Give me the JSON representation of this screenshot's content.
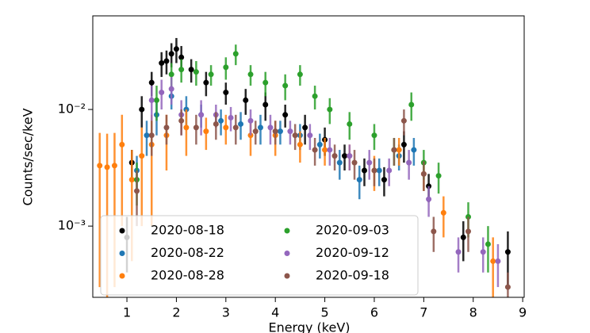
{
  "chart_data": {
    "type": "scatter",
    "x_label": "Energy (keV)",
    "y_label": "Counts/sec/keV",
    "yscale": "log",
    "xlim": [
      0.31,
      9.03
    ],
    "ylim": [
      0.000245,
      0.0635
    ],
    "xticks": [
      1,
      2,
      3,
      4,
      5,
      6,
      7,
      8,
      9
    ],
    "yticks": [
      {
        "value": 0.001,
        "label": "10⁻³"
      },
      {
        "value": 0.01,
        "label": "10⁻²"
      }
    ],
    "legend": "lower left",
    "series": [
      {
        "name": "2020-08-18",
        "color": "#000000",
        "x": [
          1.0,
          1.1,
          1.3,
          1.5,
          1.7,
          1.8,
          1.9,
          2.0,
          2.1,
          2.3,
          2.6,
          3.0,
          3.4,
          3.8,
          4.2,
          4.6,
          5.0,
          5.4,
          5.8,
          6.2,
          6.6,
          7.1,
          7.8,
          8.7
        ],
        "values": [
          0.0008,
          0.0035,
          0.01,
          0.017,
          0.025,
          0.026,
          0.03,
          0.033,
          0.028,
          0.022,
          0.017,
          0.014,
          0.012,
          0.011,
          0.009,
          0.007,
          0.0055,
          0.004,
          0.003,
          0.0025,
          0.005,
          0.0022,
          0.0008,
          0.0006
        ],
        "errors": [
          0.0004,
          0.001,
          0.003,
          0.004,
          0.006,
          0.006,
          0.007,
          0.008,
          0.007,
          0.005,
          0.004,
          0.003,
          0.003,
          0.003,
          0.002,
          0.002,
          0.0015,
          0.001,
          0.0008,
          0.0007,
          0.0015,
          0.0006,
          0.0003,
          0.0003
        ]
      },
      {
        "name": "2020-08-22",
        "color": "#1f77b4",
        "x": [
          1.2,
          1.4,
          1.6,
          1.9,
          2.2,
          2.5,
          2.9,
          3.3,
          3.7,
          4.1,
          4.5,
          4.9,
          5.3,
          5.7,
          6.1,
          6.5,
          6.8
        ],
        "values": [
          0.003,
          0.006,
          0.009,
          0.013,
          0.01,
          0.009,
          0.008,
          0.0075,
          0.007,
          0.0065,
          0.006,
          0.005,
          0.0035,
          0.0025,
          0.003,
          0.004,
          0.0045
        ],
        "errors": [
          0.001,
          0.002,
          0.003,
          0.003,
          0.003,
          0.002,
          0.002,
          0.002,
          0.002,
          0.0015,
          0.0015,
          0.0012,
          0.001,
          0.0008,
          0.0008,
          0.001,
          0.0012
        ]
      },
      {
        "name": "2020-08-28",
        "color": "#ff7f0e",
        "x": [
          0.45,
          0.6,
          0.75,
          0.9,
          1.1,
          1.3,
          1.5,
          1.8,
          2.2,
          2.6,
          3.0,
          3.5,
          4.0,
          4.5,
          5.0,
          5.5,
          6.0,
          6.5,
          7.0,
          7.4,
          8.4
        ],
        "values": [
          0.0033,
          0.0032,
          0.0033,
          0.005,
          0.0025,
          0.004,
          0.005,
          0.006,
          0.007,
          0.0065,
          0.007,
          0.006,
          0.006,
          0.005,
          0.0045,
          0.004,
          0.003,
          0.0045,
          0.0028,
          0.0013,
          0.0005
        ],
        "errors": [
          0.003,
          0.003,
          0.003,
          0.004,
          0.002,
          0.003,
          0.004,
          0.003,
          0.003,
          0.002,
          0.002,
          0.002,
          0.002,
          0.0015,
          0.0012,
          0.001,
          0.001,
          0.0012,
          0.0008,
          0.0005,
          0.0003
        ]
      },
      {
        "name": "2020-09-03",
        "color": "#2ca02c",
        "x": [
          1.2,
          1.6,
          1.9,
          2.1,
          2.4,
          2.7,
          3.0,
          3.2,
          3.5,
          3.8,
          4.2,
          4.5,
          4.8,
          5.1,
          5.5,
          6.0,
          6.4,
          6.75,
          7.0,
          7.3,
          7.9,
          8.3
        ],
        "values": [
          0.0025,
          0.012,
          0.02,
          0.022,
          0.021,
          0.02,
          0.023,
          0.03,
          0.02,
          0.017,
          0.016,
          0.02,
          0.013,
          0.01,
          0.0075,
          0.006,
          0.0045,
          0.011,
          0.0035,
          0.0027,
          0.0012,
          0.0007
        ],
        "errors": [
          0.001,
          0.004,
          0.005,
          0.005,
          0.005,
          0.004,
          0.005,
          0.006,
          0.004,
          0.004,
          0.004,
          0.004,
          0.003,
          0.0025,
          0.002,
          0.0015,
          0.0012,
          0.003,
          0.001,
          0.0008,
          0.0004,
          0.0003
        ]
      },
      {
        "name": "2020-09-12",
        "color": "#9467bd",
        "x": [
          1.5,
          1.7,
          1.9,
          2.1,
          2.5,
          2.8,
          3.1,
          3.5,
          3.9,
          4.3,
          4.7,
          5.1,
          5.5,
          5.9,
          6.3,
          6.7,
          7.1,
          7.7,
          8.2,
          8.5
        ],
        "values": [
          0.012,
          0.014,
          0.015,
          0.009,
          0.009,
          0.009,
          0.0085,
          0.008,
          0.007,
          0.0065,
          0.006,
          0.0045,
          0.004,
          0.0035,
          0.003,
          0.0035,
          0.0017,
          0.0006,
          0.0006,
          0.0005
        ],
        "errors": [
          0.004,
          0.004,
          0.004,
          0.003,
          0.003,
          0.002,
          0.002,
          0.002,
          0.002,
          0.0015,
          0.0015,
          0.0012,
          0.001,
          0.001,
          0.0008,
          0.001,
          0.0005,
          0.0002,
          0.0002,
          0.0002
        ]
      },
      {
        "name": "2020-09-18",
        "color": "#8c564b",
        "x": [
          1.2,
          1.5,
          1.8,
          2.1,
          2.4,
          2.8,
          3.2,
          3.6,
          4.0,
          4.4,
          4.8,
          5.2,
          5.6,
          6.0,
          6.4,
          6.6,
          7.0,
          7.2,
          7.9,
          8.7
        ],
        "values": [
          0.002,
          0.006,
          0.007,
          0.008,
          0.007,
          0.0075,
          0.007,
          0.0065,
          0.0065,
          0.006,
          0.0045,
          0.004,
          0.0035,
          0.003,
          0.0045,
          0.008,
          0.0028,
          0.0009,
          0.0009,
          0.0003
        ],
        "errors": [
          0.001,
          0.002,
          0.002,
          0.002,
          0.002,
          0.002,
          0.002,
          0.0015,
          0.0015,
          0.0015,
          0.0012,
          0.001,
          0.001,
          0.0008,
          0.0012,
          0.002,
          0.0008,
          0.0003,
          0.0003,
          0.0001
        ]
      }
    ]
  }
}
